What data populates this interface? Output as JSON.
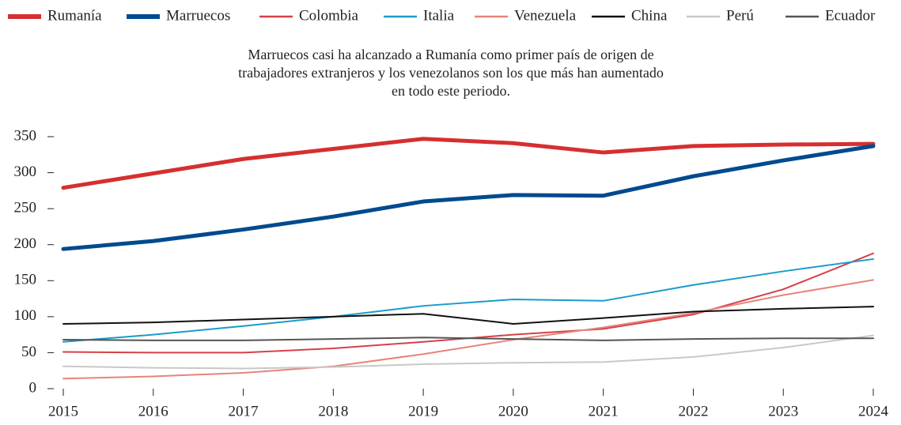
{
  "chart_data": {
    "type": "line",
    "title": [
      "Marruecos casi ha alcanzado a Rumanía como primer país de origen de",
      "trabajadores extranjeros y los venezolanos son los que más han aumentado",
      "en todo este periodo."
    ],
    "categories": [
      "2015",
      "2016",
      "2017",
      "2018",
      "2019",
      "2020",
      "2021",
      "2022",
      "2023",
      "2024"
    ],
    "ylim": [
      0,
      350
    ],
    "yticks": [
      0,
      50,
      100,
      150,
      200,
      250,
      300,
      350
    ],
    "legend": "top",
    "series": [
      {
        "name": "Rumanía",
        "color": "#d62f2f",
        "linewidth": 5,
        "values": [
          279,
          299,
          319,
          333,
          347,
          341,
          328,
          337,
          339,
          340
        ]
      },
      {
        "name": "Marruecos",
        "color": "#004a8f",
        "linewidth": 5,
        "values": [
          194,
          205,
          221,
          239,
          260,
          269,
          268,
          295,
          317,
          337
        ]
      },
      {
        "name": "Colombia",
        "color": "#d6404a",
        "linewidth": 2,
        "values": [
          51,
          50,
          50,
          56,
          65,
          75,
          83,
          103,
          138,
          188
        ]
      },
      {
        "name": "Italia",
        "color": "#1a9bcc",
        "linewidth": 2,
        "values": [
          65,
          75,
          87,
          100,
          115,
          124,
          122,
          144,
          163,
          180
        ]
      },
      {
        "name": "Venezuela",
        "color": "#e8847a",
        "linewidth": 2,
        "values": [
          14,
          17,
          22,
          31,
          48,
          68,
          85,
          105,
          130,
          151
        ]
      },
      {
        "name": "China",
        "color": "#111111",
        "linewidth": 2,
        "values": [
          90,
          92,
          96,
          100,
          104,
          90,
          98,
          107,
          111,
          114
        ]
      },
      {
        "name": "Perú",
        "color": "#c8c8c8",
        "linewidth": 2,
        "values": [
          31,
          29,
          28,
          30,
          34,
          36,
          37,
          44,
          57,
          74
        ]
      },
      {
        "name": "Ecuador",
        "color": "#555555",
        "linewidth": 2,
        "values": [
          68,
          67,
          67,
          69,
          71,
          69,
          67,
          69,
          70,
          70
        ]
      }
    ]
  }
}
